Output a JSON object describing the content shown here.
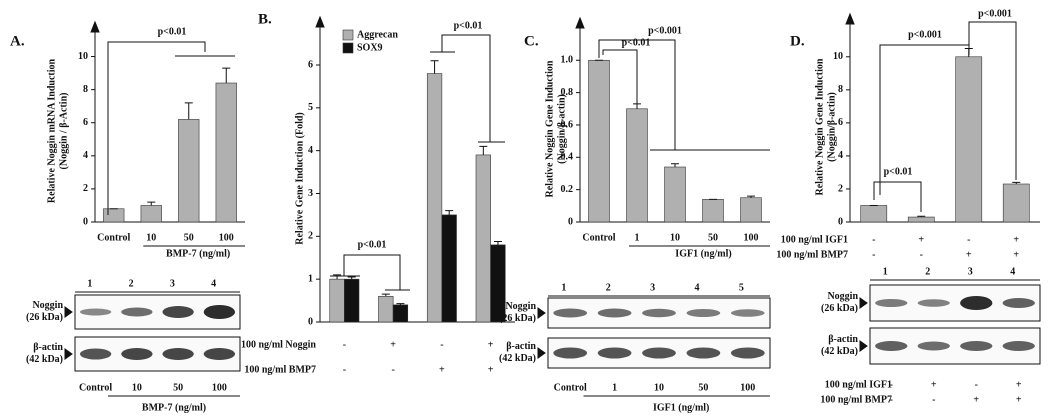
{
  "chart_data": [
    {
      "type": "bar",
      "panel_label": "A.",
      "ylabel": [
        "Relative Noggin mRNA Induction",
        "(Noggin / β-Actin)"
      ],
      "categories": [
        "Control",
        "10",
        "50",
        "100"
      ],
      "xlabel": "BMP-7 (ng/ml)",
      "values": [
        0.8,
        1.0,
        6.2,
        8.4
      ],
      "errors": [
        0,
        0.2,
        1.0,
        0.9
      ],
      "color": "#b0b0b0",
      "ylim": [
        0,
        11
      ],
      "yticks": [
        0,
        2,
        4,
        6,
        8,
        10
      ],
      "annotations": [
        "p<0.01"
      ],
      "blot": {
        "lanes": [
          "1",
          "2",
          "3",
          "4"
        ],
        "rows": [
          "Noggin (26 kDa)",
          "β-actin (42 kDa)"
        ]
      }
    },
    {
      "type": "grouped-bar",
      "panel_label": "B.",
      "ylabel": [
        "Relative Gene Induction (Fold)"
      ],
      "series": [
        {
          "name": "Aggrecan",
          "color": "#b0b0b0",
          "values": [
            1.0,
            0.6,
            5.8,
            3.9
          ],
          "errors": [
            0.1,
            0.05,
            0.3,
            0.2
          ]
        },
        {
          "name": "SOX9",
          "color": "#111111",
          "values": [
            1.0,
            0.4,
            2.5,
            1.8
          ],
          "errors": [
            0.05,
            0.03,
            0.1,
            0.08
          ]
        }
      ],
      "ylim": [
        0,
        6.7
      ],
      "yticks": [
        0,
        1,
        2,
        3,
        4,
        5,
        6
      ],
      "annotations": [
        "p<0.01",
        "p<0.01"
      ],
      "conditions": [
        {
          "label": "100 ng/ml Noggin",
          "values": [
            "-",
            "+",
            "-",
            "+"
          ]
        },
        {
          "label": "100 ng/ml BMP7",
          "values": [
            "-",
            "-",
            "+",
            "+"
          ]
        }
      ]
    },
    {
      "type": "bar",
      "panel_label": "C.",
      "ylabel": [
        "Relative Noggin Gene Induction",
        "(Noggin/β-actin)"
      ],
      "categories": [
        "Control",
        "1",
        "10",
        "50",
        "100"
      ],
      "xlabel": "IGF1 (ng/ml)",
      "values": [
        1.0,
        0.7,
        0.34,
        0.14,
        0.15
      ],
      "errors": [
        0,
        0.03,
        0.02,
        0,
        0.01
      ],
      "color": "#b0b0b0",
      "ylim": [
        0,
        1.15
      ],
      "yticks": [
        0,
        0.2,
        0.4,
        0.6,
        0.8,
        {
          "value": 1,
          "label": "1.0"
        }
      ],
      "annotations": [
        "p<0.001",
        "p<0.01"
      ],
      "blot": {
        "lanes": [
          "1",
          "2",
          "3",
          "4",
          "5"
        ],
        "rows": [
          "Noggin (26 kDa)",
          "β-actin (42 kDa)"
        ]
      }
    },
    {
      "type": "bar",
      "panel_label": "D.",
      "ylabel": [
        "Relative Noggin Gene Induction",
        "(Noggin/β-actin)"
      ],
      "values": [
        1.0,
        0.3,
        10.0,
        2.3
      ],
      "errors": [
        0,
        0.05,
        0.5,
        0.1
      ],
      "color": "#b0b0b0",
      "ylim": [
        0,
        11.5
      ],
      "yticks": [
        0,
        2,
        4,
        6,
        8,
        10
      ],
      "annotations": [
        "p<0.01",
        "p<0.001",
        "p<0.001"
      ],
      "conditions": [
        {
          "label": "100 ng/ml IGF1",
          "values": [
            "-",
            "+",
            "-",
            "+"
          ]
        },
        {
          "label": "100 ng/ml BMP7",
          "values": [
            "-",
            "-",
            "+",
            "+"
          ]
        }
      ],
      "blot": {
        "lanes": [
          "1",
          "2",
          "3",
          "4"
        ],
        "rows": [
          "Noggin (26 kDa)",
          "β-actin (42 kDa)"
        ]
      }
    }
  ]
}
